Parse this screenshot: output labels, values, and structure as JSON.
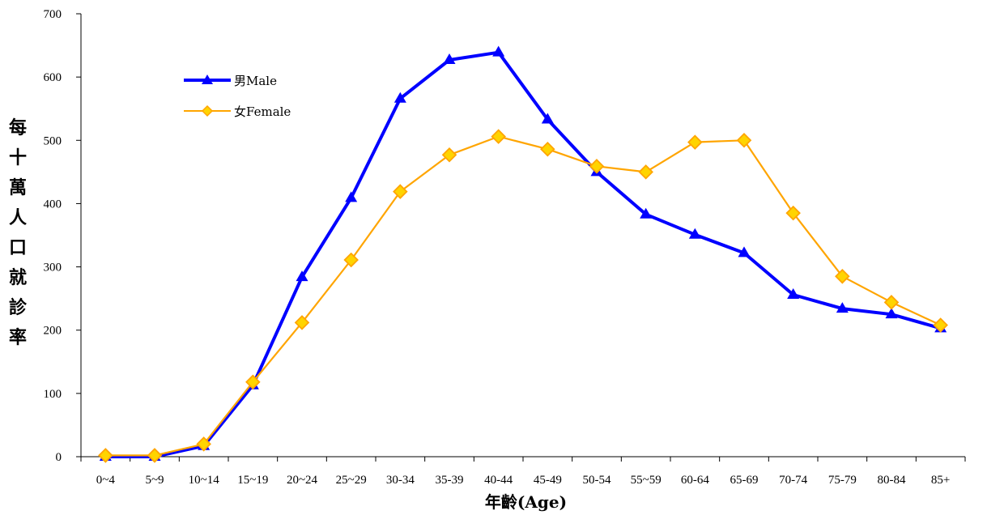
{
  "chart_data": {
    "type": "line",
    "categories": [
      "0~4",
      "5~9",
      "10~14",
      "15~19",
      "20~24",
      "25~29",
      "30-34",
      "35-39",
      "40-44",
      "45-49",
      "50-54",
      "55~59",
      "60-64",
      "65-69",
      "70-74",
      "75-79",
      "80-84",
      "85+"
    ],
    "series": [
      {
        "name": "男Male",
        "color": "#0000ff",
        "marker": "triangle",
        "values": [
          0,
          0,
          17,
          113,
          284,
          409,
          566,
          627,
          639,
          533,
          450,
          383,
          351,
          322,
          256,
          234,
          225,
          203
        ]
      },
      {
        "name": "女Female",
        "color": "#ffa500",
        "marker": "diamond",
        "values": [
          2,
          2,
          20,
          118,
          212,
          311,
          419,
          477,
          506,
          486,
          459,
          450,
          497,
          500,
          385,
          285,
          244,
          208
        ]
      }
    ],
    "xlabel": "年齡(Age)",
    "ylabel": "每十萬人口就診率",
    "ylim": [
      0,
      700
    ],
    "yticks": [
      0,
      100,
      200,
      300,
      400,
      500,
      600,
      700
    ],
    "grid": false,
    "legend_position": "top-left"
  }
}
